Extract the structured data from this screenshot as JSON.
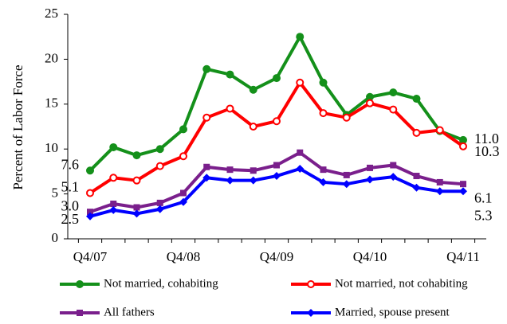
{
  "chart_data": {
    "type": "line",
    "y_label": "Percent of Labor Force",
    "categories": [
      "Q4/07",
      null,
      null,
      null,
      "Q4/08",
      null,
      null,
      null,
      "Q4/09",
      null,
      null,
      null,
      "Q4/10",
      null,
      null,
      null,
      "Q4/11"
    ],
    "ylim": [
      0,
      25
    ],
    "yticks": [
      0,
      5,
      10,
      15,
      20,
      25
    ],
    "series": [
      {
        "name": "Not married, cohabiting",
        "color": "#14901a",
        "marker": "circle",
        "values": [
          7.6,
          10.2,
          9.3,
          10.0,
          12.2,
          18.9,
          18.3,
          16.6,
          17.9,
          22.5,
          17.4,
          13.8,
          15.8,
          16.3,
          15.6,
          12.0,
          11.0
        ],
        "value_labels": [
          "7.6",
          null,
          null,
          null,
          null,
          null,
          null,
          null,
          null,
          null,
          null,
          null,
          null,
          null,
          null,
          null,
          "11.0"
        ]
      },
      {
        "name": "Not married, not cohabiting",
        "color": "#ff0000",
        "marker": "open-circle",
        "values": [
          5.1,
          6.8,
          6.5,
          8.1,
          9.2,
          13.5,
          14.5,
          12.5,
          13.1,
          17.4,
          14.0,
          13.5,
          15.1,
          14.4,
          11.8,
          12.1,
          10.3
        ],
        "value_labels": [
          "5.1",
          null,
          null,
          null,
          null,
          null,
          null,
          null,
          null,
          null,
          null,
          null,
          null,
          null,
          null,
          null,
          "10.3"
        ]
      },
      {
        "name": "All fathers",
        "color": "#7a1f8c",
        "marker": "square",
        "values": [
          3.0,
          3.9,
          3.5,
          4.0,
          5.1,
          8.0,
          7.7,
          7.6,
          8.2,
          9.6,
          7.7,
          7.1,
          7.9,
          8.2,
          7.0,
          6.3,
          6.1
        ],
        "value_labels": [
          "3.0",
          null,
          null,
          null,
          null,
          null,
          null,
          null,
          null,
          null,
          null,
          null,
          null,
          null,
          null,
          null,
          "6.1"
        ]
      },
      {
        "name": "Married, spouse present",
        "color": "#0000ff",
        "marker": "diamond",
        "values": [
          2.5,
          3.2,
          2.8,
          3.3,
          4.1,
          6.8,
          6.5,
          6.5,
          7.0,
          7.8,
          6.3,
          6.1,
          6.6,
          6.9,
          5.7,
          5.3,
          5.3
        ],
        "value_labels": [
          "2.5",
          null,
          null,
          null,
          null,
          null,
          null,
          null,
          null,
          null,
          null,
          null,
          null,
          null,
          null,
          null,
          "5.3"
        ]
      }
    ]
  }
}
